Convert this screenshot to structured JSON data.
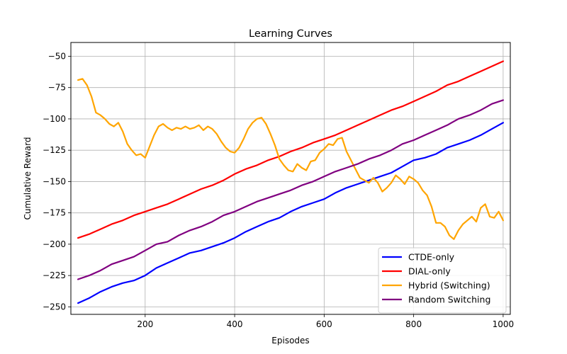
{
  "chart_data": {
    "type": "line",
    "title": "Learning Curves",
    "xlabel": "Episodes",
    "ylabel": "Cumulative Reward",
    "xlim": [
      34,
      1016
    ],
    "ylim": [
      -256,
      -39
    ],
    "xticks": [
      200,
      400,
      600,
      800,
      1000
    ],
    "yticks": [
      -250,
      -225,
      -200,
      -175,
      -150,
      -125,
      -100,
      -75,
      -50
    ],
    "grid": true,
    "legend_position": "bottom-right",
    "series": [
      {
        "name": "CTDE-only",
        "color": "#0000ff",
        "x": [
          50,
          75,
          100,
          125,
          150,
          175,
          200,
          225,
          250,
          275,
          300,
          325,
          350,
          375,
          400,
          425,
          450,
          475,
          500,
          525,
          550,
          575,
          600,
          625,
          650,
          675,
          700,
          725,
          750,
          775,
          800,
          825,
          850,
          875,
          900,
          925,
          950,
          975,
          1000
        ],
        "y": [
          -247,
          -243,
          -238,
          -234,
          -231,
          -229,
          -225,
          -219,
          -215,
          -211,
          -207,
          -205,
          -202,
          -199,
          -195,
          -190,
          -186,
          -182,
          -179,
          -174,
          -170,
          -167,
          -164,
          -159,
          -155,
          -152,
          -149,
          -146,
          -143,
          -138,
          -133,
          -131,
          -128,
          -123,
          -120,
          -117,
          -113,
          -108,
          -103
        ]
      },
      {
        "name": "DIAL-only",
        "color": "#ff0000",
        "x": [
          50,
          75,
          100,
          125,
          150,
          175,
          200,
          225,
          250,
          275,
          300,
          325,
          350,
          375,
          400,
          425,
          450,
          475,
          500,
          525,
          550,
          575,
          600,
          625,
          650,
          675,
          700,
          725,
          750,
          775,
          800,
          825,
          850,
          875,
          900,
          925,
          950,
          975,
          1000
        ],
        "y": [
          -195,
          -192,
          -188,
          -184,
          -181,
          -177,
          -174,
          -171,
          -168,
          -164,
          -160,
          -156,
          -153,
          -149,
          -144,
          -140,
          -137,
          -133,
          -130,
          -126,
          -123,
          -119,
          -116,
          -113,
          -109,
          -105,
          -101,
          -97,
          -93,
          -90,
          -86,
          -82,
          -78,
          -73,
          -70,
          -66,
          -62,
          -58,
          -54
        ]
      },
      {
        "name": "Hybrid (Switching)",
        "color": "#ffa500",
        "x": [
          50,
          60,
          70,
          80,
          90,
          100,
          110,
          120,
          130,
          140,
          150,
          160,
          170,
          180,
          190,
          200,
          210,
          220,
          230,
          240,
          250,
          260,
          270,
          280,
          290,
          300,
          310,
          320,
          330,
          340,
          350,
          360,
          370,
          380,
          390,
          400,
          410,
          420,
          430,
          440,
          450,
          460,
          470,
          480,
          490,
          500,
          510,
          520,
          530,
          540,
          550,
          560,
          570,
          580,
          590,
          600,
          610,
          620,
          630,
          640,
          650,
          660,
          670,
          680,
          690,
          700,
          710,
          720,
          730,
          740,
          750,
          760,
          770,
          780,
          790,
          800,
          810,
          820,
          830,
          840,
          850,
          860,
          870,
          880,
          890,
          900,
          910,
          920,
          930,
          940,
          950,
          960,
          970,
          980,
          990,
          1000
        ],
        "y": [
          -69,
          -68,
          -73,
          -82,
          -95,
          -97,
          -100,
          -104,
          -106,
          -103,
          -110,
          -120,
          -125,
          -129,
          -128,
          -131,
          -122,
          -113,
          -106,
          -104,
          -107,
          -109,
          -107,
          -108,
          -106,
          -108,
          -107,
          -105,
          -109,
          -106,
          -108,
          -112,
          -118,
          -123,
          -126,
          -127,
          -123,
          -116,
          -108,
          -103,
          -100,
          -99,
          -104,
          -112,
          -121,
          -132,
          -137,
          -141,
          -142,
          -136,
          -139,
          -141,
          -134,
          -133,
          -127,
          -124,
          -120,
          -121,
          -116,
          -115,
          -126,
          -133,
          -140,
          -147,
          -149,
          -151,
          -147,
          -151,
          -158,
          -155,
          -151,
          -145,
          -148,
          -152,
          -146,
          -148,
          -151,
          -157,
          -161,
          -170,
          -183,
          -183,
          -186,
          -193,
          -196,
          -189,
          -184,
          -181,
          -178,
          -182,
          -171,
          -168,
          -178,
          -179,
          -174,
          -181
        ]
      },
      {
        "name": "Random Switching",
        "color": "#800080",
        "x": [
          50,
          75,
          100,
          125,
          150,
          175,
          200,
          225,
          250,
          275,
          300,
          325,
          350,
          375,
          400,
          425,
          450,
          475,
          500,
          525,
          550,
          575,
          600,
          625,
          650,
          675,
          700,
          725,
          750,
          775,
          800,
          825,
          850,
          875,
          900,
          925,
          950,
          975,
          1000
        ],
        "y": [
          -228,
          -225,
          -221,
          -216,
          -213,
          -210,
          -205,
          -200,
          -198,
          -193,
          -189,
          -186,
          -182,
          -177,
          -174,
          -170,
          -166,
          -163,
          -160,
          -157,
          -153,
          -150,
          -146,
          -142,
          -139,
          -136,
          -132,
          -129,
          -125,
          -120,
          -117,
          -113,
          -109,
          -105,
          -100,
          -97,
          -93,
          -88,
          -85
        ]
      }
    ]
  }
}
